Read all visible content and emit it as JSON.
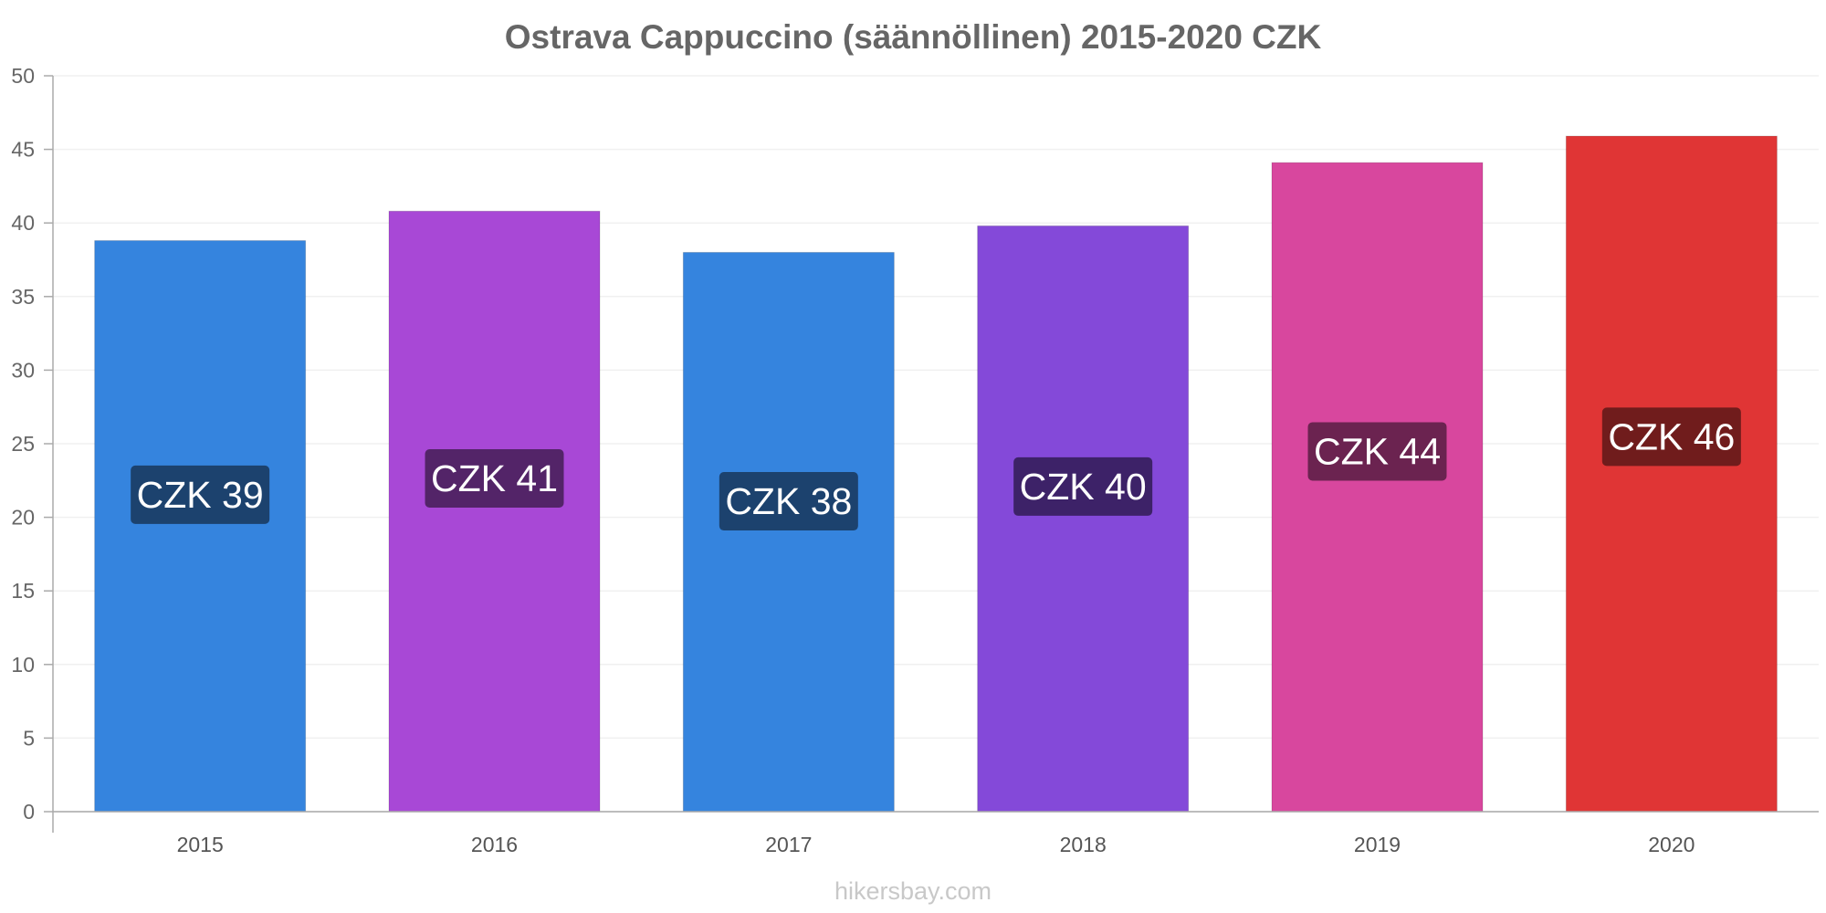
{
  "chart_data": {
    "type": "bar",
    "title": "Ostrava Cappuccino (säännöllinen) 2015-2020 CZK",
    "categories": [
      "2015",
      "2016",
      "2017",
      "2018",
      "2019",
      "2020"
    ],
    "values": [
      38.8,
      40.8,
      38.0,
      39.8,
      44.1,
      45.9
    ],
    "data_labels": [
      "CZK 39",
      "CZK 41",
      "CZK 38",
      "CZK 40",
      "CZK 44",
      "CZK 46"
    ],
    "colors": [
      "#3584de",
      "#a848d6",
      "#3584de",
      "#8449d9",
      "#d8479e",
      "#e03535"
    ],
    "label_colors": [
      "#1c426e",
      "#532468",
      "#1c426e",
      "#3d2268",
      "#6b2350",
      "#701c1c"
    ],
    "yticks": [
      0,
      5,
      10,
      15,
      20,
      25,
      30,
      35,
      40,
      45,
      50
    ],
    "ylim": [
      0,
      50
    ],
    "xlabel": "",
    "ylabel": "",
    "grid": true
  },
  "watermark": "hikersbay.com"
}
